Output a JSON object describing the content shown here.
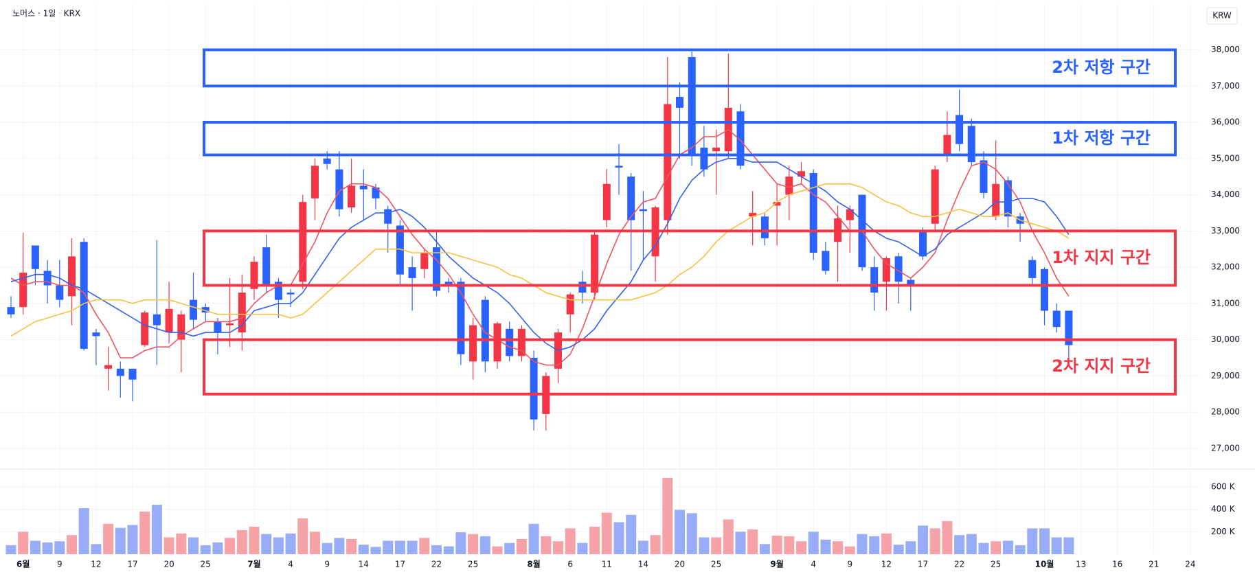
{
  "chart_data": {
    "type": "candlestick",
    "header": "노머스 · 1일 · KRX",
    "currency": "KRW",
    "categories": [
      null,
      "6월",
      null,
      null,
      "9",
      null,
      null,
      "12",
      null,
      null,
      "17",
      null,
      null,
      "20",
      null,
      null,
      "25",
      null,
      null,
      null,
      "7월",
      null,
      null,
      "4",
      null,
      null,
      "9",
      null,
      null,
      "14",
      null,
      null,
      "17",
      null,
      null,
      "22",
      null,
      null,
      "25",
      null,
      null,
      null,
      null,
      "8월",
      null,
      null,
      "6",
      null,
      null,
      "11",
      null,
      null,
      "14",
      null,
      null,
      "20",
      null,
      null,
      "25",
      null,
      null,
      null,
      null,
      "9월",
      null,
      null,
      "4",
      null,
      null,
      "9",
      null,
      null,
      "12",
      null,
      null,
      "17",
      null,
      null,
      "22",
      null,
      null,
      "25",
      null,
      null,
      null,
      "10월",
      null,
      null,
      "13",
      null,
      null,
      "16",
      null,
      null,
      "21",
      null,
      null,
      "24"
    ],
    "open": [
      30900,
      30900,
      32600,
      31900,
      31500,
      31200,
      32700,
      30200,
      29200,
      29200,
      29200,
      29850,
      30700,
      30200,
      30000,
      31100,
      30900,
      30500,
      30400,
      30200,
      31400,
      32550,
      31600,
      31300,
      31600,
      33900,
      35000,
      34700,
      33650,
      34250,
      34200,
      33600,
      33150,
      32000,
      31950,
      32550,
      31600,
      31600,
      29400,
      31100,
      29400,
      30300,
      29550,
      29500,
      27950,
      29200,
      30700,
      31600,
      31300,
      33300,
      34800,
      34500,
      33600,
      32300,
      33300,
      36700,
      37800,
      35300,
      35200,
      35200,
      36300,
      33400,
      33400,
      33700,
      34000,
      34500,
      34600,
      32450,
      32700,
      33300,
      34000,
      32000,
      31600,
      32300,
      31650,
      33000,
      33200,
      35100,
      36200,
      35900,
      34950,
      33400,
      34400,
      33400,
      32200,
      31950,
      30800,
      30800,
      null,
      null,
      null,
      null,
      null,
      null,
      null,
      null,
      null,
      null
    ],
    "high": [
      31200,
      32950,
      32600,
      32200,
      32200,
      32800,
      32800,
      30300,
      29800,
      29400,
      29200,
      30800,
      32750,
      31600,
      30800,
      31850,
      31000,
      30600,
      31700,
      31800,
      32300,
      32900,
      31700,
      31400,
      34000,
      35000,
      35200,
      35200,
      35000,
      34700,
      34300,
      33700,
      33300,
      32300,
      32500,
      33000,
      31700,
      31700,
      30600,
      31200,
      30500,
      30500,
      30400,
      29700,
      29100,
      30300,
      31300,
      31900,
      33000,
      34700,
      35400,
      34600,
      34100,
      33700,
      37800,
      37100,
      37950,
      35900,
      35800,
      37900,
      36500,
      34100,
      33500,
      34300,
      34800,
      34900,
      34700,
      32700,
      33700,
      33700,
      34000,
      32300,
      32300,
      32400,
      31700,
      33100,
      34800,
      36300,
      36900,
      36100,
      35200,
      35500,
      34500,
      33500,
      32300,
      32000,
      31000,
      30800,
      null,
      null,
      null,
      null,
      null,
      null,
      null,
      null,
      null,
      null
    ],
    "low": [
      30600,
      30700,
      31500,
      31000,
      30900,
      30400,
      29700,
      29300,
      28600,
      28400,
      28300,
      29800,
      29300,
      29900,
      29100,
      30300,
      30500,
      29600,
      29800,
      29700,
      31100,
      31300,
      30600,
      30900,
      31400,
      33300,
      34700,
      33400,
      33500,
      33300,
      33600,
      32400,
      31500,
      30800,
      31700,
      31200,
      31300,
      29300,
      28900,
      29100,
      29200,
      29400,
      29400,
      27500,
      27500,
      28800,
      30200,
      31000,
      31100,
      33100,
      34000,
      31900,
      32200,
      31600,
      32900,
      35000,
      34800,
      34500,
      34000,
      35000,
      34700,
      32600,
      32600,
      32600,
      33300,
      34300,
      32200,
      31800,
      31600,
      32400,
      31900,
      30800,
      30800,
      31000,
      30800,
      32200,
      33000,
      34900,
      35200,
      34800,
      33900,
      33300,
      33100,
      32700,
      31500,
      30400,
      30200,
      29500,
      null,
      null,
      null,
      null,
      null,
      null,
      null,
      null,
      null,
      null
    ],
    "close": [
      30700,
      31850,
      31950,
      31500,
      31100,
      32300,
      29750,
      30100,
      29300,
      29000,
      28900,
      30750,
      30400,
      30850,
      30700,
      30550,
      30750,
      30200,
      30450,
      31300,
      32150,
      31500,
      31100,
      31250,
      33800,
      34800,
      34850,
      33600,
      34250,
      34150,
      33900,
      33200,
      31800,
      31700,
      32400,
      31350,
      31500,
      29600,
      30400,
      29400,
      30450,
      29550,
      30300,
      27800,
      29000,
      30200,
      31250,
      31300,
      32900,
      34300,
      34750,
      33300,
      33550,
      33650,
      36500,
      36400,
      35100,
      34700,
      35300,
      36400,
      34800,
      33500,
      32800,
      33800,
      34500,
      34650,
      32400,
      31900,
      33350,
      33600,
      32000,
      31300,
      32250,
      31600,
      31500,
      32300,
      34700,
      35650,
      35400,
      34900,
      34050,
      34300,
      33400,
      33200,
      31700,
      30800,
      30350,
      29850,
      null,
      null,
      null,
      null,
      null,
      null,
      null,
      null,
      null,
      null
    ],
    "up_color": "#f23645",
    "down_color": "#2962ff",
    "moving_averages": [
      {
        "color": "#ef5361",
        "values": [
          31700,
          31500,
          31600,
          31600,
          31500,
          31500,
          31300,
          30700,
          30200,
          29500,
          29500,
          29700,
          29800,
          29800,
          30100,
          30300,
          30500,
          30500,
          30500,
          30600,
          31000,
          31300,
          31500,
          31500,
          32100,
          32700,
          33500,
          34100,
          34300,
          34300,
          34200,
          33900,
          33400,
          32900,
          32500,
          32200,
          31800,
          31300,
          30700,
          30200,
          30000,
          29800,
          29700,
          29400,
          29300,
          29300,
          29600,
          30300,
          31200,
          32100,
          32900,
          33400,
          33800,
          33900,
          34500,
          35100,
          35300,
          35600,
          35600,
          35800,
          35500,
          35100,
          34700,
          34300,
          34200,
          34300,
          34000,
          33800,
          33400,
          33000,
          33000,
          32500,
          32100,
          31900,
          31700,
          32000,
          32400,
          33300,
          34100,
          34800,
          34900,
          34700,
          34300,
          33800,
          33000,
          32400,
          31700,
          31200,
          null,
          null,
          null,
          null,
          null,
          null,
          null,
          null,
          null,
          null
        ]
      },
      {
        "color": "#2f62f0",
        "values": [
          31600,
          31700,
          31800,
          31800,
          31700,
          31500,
          31400,
          31200,
          31000,
          30800,
          30600,
          30400,
          30300,
          30200,
          30200,
          30100,
          30200,
          30200,
          30200,
          30400,
          30800,
          30900,
          31000,
          31000,
          31300,
          31800,
          32300,
          32800,
          33100,
          33300,
          33500,
          33500,
          33600,
          33400,
          33100,
          32700,
          32300,
          32000,
          31700,
          31500,
          31300,
          31000,
          30600,
          30200,
          29900,
          29700,
          29800,
          30000,
          30300,
          30800,
          31200,
          31600,
          32200,
          32600,
          33200,
          33900,
          34400,
          34700,
          34900,
          35000,
          35000,
          34900,
          34900,
          34900,
          34700,
          34500,
          34300,
          34100,
          33800,
          33600,
          33300,
          33000,
          32800,
          32700,
          32500,
          32300,
          32500,
          32900,
          33100,
          33300,
          33500,
          33800,
          33800,
          33900,
          33900,
          33800,
          33400,
          32900,
          null,
          null,
          null,
          null,
          null,
          null,
          null,
          null,
          null,
          null
        ]
      },
      {
        "color": "#f6c244",
        "values": [
          30100,
          30300,
          30500,
          30600,
          30700,
          30800,
          31000,
          31100,
          31100,
          31100,
          31000,
          31100,
          31100,
          31100,
          31000,
          30900,
          30800,
          30700,
          30700,
          30700,
          30700,
          30700,
          30700,
          30600,
          30700,
          31000,
          31300,
          31600,
          31900,
          32200,
          32500,
          32500,
          32500,
          32400,
          32400,
          32400,
          32400,
          32300,
          32200,
          32100,
          32000,
          31800,
          31700,
          31500,
          31300,
          31200,
          31100,
          31100,
          31100,
          31100,
          31100,
          31100,
          31200,
          31300,
          31500,
          31800,
          32000,
          32300,
          32700,
          33000,
          33200,
          33400,
          33500,
          33800,
          34000,
          34100,
          34200,
          34300,
          34300,
          34300,
          34200,
          34000,
          33800,
          33700,
          33500,
          33400,
          33400,
          33500,
          33600,
          33500,
          33400,
          33400,
          33500,
          33300,
          33200,
          33100,
          33000,
          32800,
          null,
          null,
          null,
          null,
          null,
          null,
          null,
          null,
          null,
          null
        ]
      }
    ],
    "ylim": [
      26450,
      39260
    ],
    "yticks": [
      {
        "value": 27000,
        "label": "27,000"
      },
      {
        "value": 28000,
        "label": "28,000"
      },
      {
        "value": 29000,
        "label": "29,000"
      },
      {
        "value": 30000,
        "label": "30,000"
      },
      {
        "value": 31000,
        "label": "31,000"
      },
      {
        "value": 32000,
        "label": "32,000"
      },
      {
        "value": 33000,
        "label": "33,000"
      },
      {
        "value": 34000,
        "label": "34,000"
      },
      {
        "value": 35000,
        "label": "35,000"
      },
      {
        "value": 36000,
        "label": "36,000"
      },
      {
        "value": 37000,
        "label": "37,000"
      },
      {
        "value": 38000,
        "label": "38,000"
      }
    ],
    "grid": true,
    "zones": [
      {
        "label": "2차 저항 구간",
        "low": 37000,
        "high": 38000,
        "color": "#2962ff"
      },
      {
        "label": "1차 저항 구간",
        "low": 35100,
        "high": 36000,
        "color": "#2962ff"
      },
      {
        "label": "1차 지지 구간",
        "low": 31500,
        "high": 33000,
        "color": "#f23645"
      },
      {
        "label": "2차 지지 구간",
        "low": 28500,
        "high": 30000,
        "color": "#f23645"
      }
    ],
    "volume": {
      "up_color": "#f7a1a9",
      "down_color": "#98acf7",
      "ylim": [
        0,
        740
      ],
      "yticks": [
        {
          "value": 200,
          "label": "200 K"
        },
        {
          "value": 400,
          "label": "400 K"
        },
        {
          "value": 600,
          "label": "600 K"
        }
      ],
      "values": [
        80,
        200,
        120,
        105,
        115,
        170,
        410,
        90,
        270,
        235,
        260,
        380,
        440,
        150,
        185,
        150,
        80,
        105,
        145,
        215,
        245,
        180,
        150,
        185,
        320,
        200,
        100,
        145,
        135,
        85,
        65,
        120,
        120,
        120,
        145,
        80,
        70,
        195,
        180,
        160,
        70,
        100,
        135,
        270,
        160,
        115,
        230,
        100,
        245,
        370,
        285,
        350,
        120,
        170,
        680,
        395,
        365,
        150,
        150,
        310,
        200,
        220,
        90,
        165,
        160,
        115,
        200,
        130,
        115,
        70,
        180,
        160,
        185,
        85,
        115,
        255,
        230,
        295,
        170,
        180,
        100,
        115,
        120,
        80,
        230,
        230,
        150,
        150,
        null,
        null,
        null,
        null,
        null,
        null,
        null,
        null,
        null,
        null
      ]
    }
  }
}
